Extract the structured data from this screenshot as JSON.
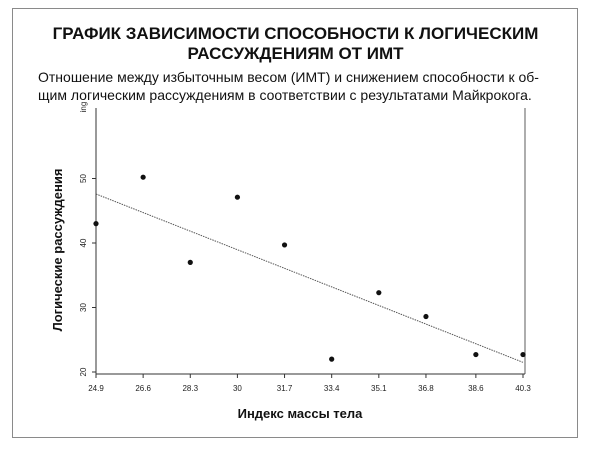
{
  "header": {
    "title_line1": "ГРАФИК ЗАВИСИМОСТИ СПОСОБНОСТИ К ЛОГИЧЕСКИМ",
    "title_line2": "РАССУЖДЕНИЯМ ОТ ИМТ",
    "subtitle_line1": "Отношение между избыточным весом (ИМТ) и снижением способности к об-",
    "subtitle_line2": "щим логическим рассуждениям в соответствии с результатами Майкрокога."
  },
  "chart_data": {
    "type": "scatter",
    "xlabel": "Индекс массы тела",
    "ylabel": "Логические рассуждения",
    "x_ticks": [
      "24.9",
      "26.6",
      "28.3",
      "30",
      "31.7",
      "33.4",
      "35.1",
      "36.8",
      "38.6",
      "40.3"
    ],
    "y_ticks": [
      "20",
      "30",
      "40",
      "50"
    ],
    "y_corner_label": "ing",
    "xlim": [
      24.9,
      40.3
    ],
    "ylim": [
      20,
      60
    ],
    "grid": false,
    "points": [
      {
        "x": 24.9,
        "y": 43
      },
      {
        "x": 26.6,
        "y": 50.2
      },
      {
        "x": 28.3,
        "y": 37
      },
      {
        "x": 30.0,
        "y": 47.1
      },
      {
        "x": 31.7,
        "y": 39.7
      },
      {
        "x": 33.4,
        "y": 22
      },
      {
        "x": 35.1,
        "y": 32.3
      },
      {
        "x": 36.8,
        "y": 28.6
      },
      {
        "x": 38.6,
        "y": 22.7
      },
      {
        "x": 40.3,
        "y": 22.7
      }
    ],
    "trendline": {
      "x": [
        24.9,
        40.3
      ],
      "y": [
        47.6,
        21.5
      ]
    },
    "colors": {
      "points": "#111111",
      "trendline": "#555555",
      "axis": "#333333"
    }
  }
}
